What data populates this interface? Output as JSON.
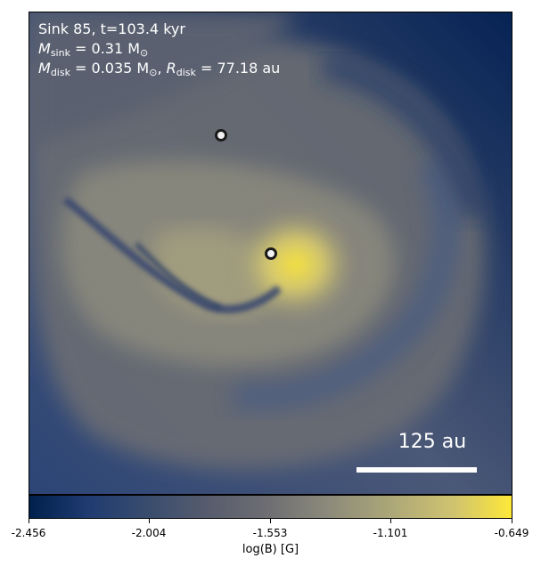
{
  "annotation": {
    "line1": "Sink 85, t=103.4 kyr",
    "msink_symbol": "M",
    "msink_sub": "sink",
    "msink_value": " = 0.31 M",
    "msink_unit_sub": "⊙",
    "mdisk_symbol": "M",
    "mdisk_sub": "disk",
    "mdisk_value": " = 0.035 M",
    "mdisk_unit_sub": "⊙",
    "rdisk_symbol": "R",
    "rdisk_sub": "disk",
    "rdisk_value": " = 77.18 au"
  },
  "scale_bar": {
    "label": "125 au"
  },
  "colorbar": {
    "ticks": [
      "-2.456",
      "-2.004",
      "-1.553",
      "-1.101",
      "-0.649"
    ],
    "label": "log(B) [G]",
    "colormap": "cividis"
  },
  "colors": {
    "background_dark": "#00204c",
    "mid_gray": "#6f6f73",
    "bright_yellow": "#fde838"
  }
}
